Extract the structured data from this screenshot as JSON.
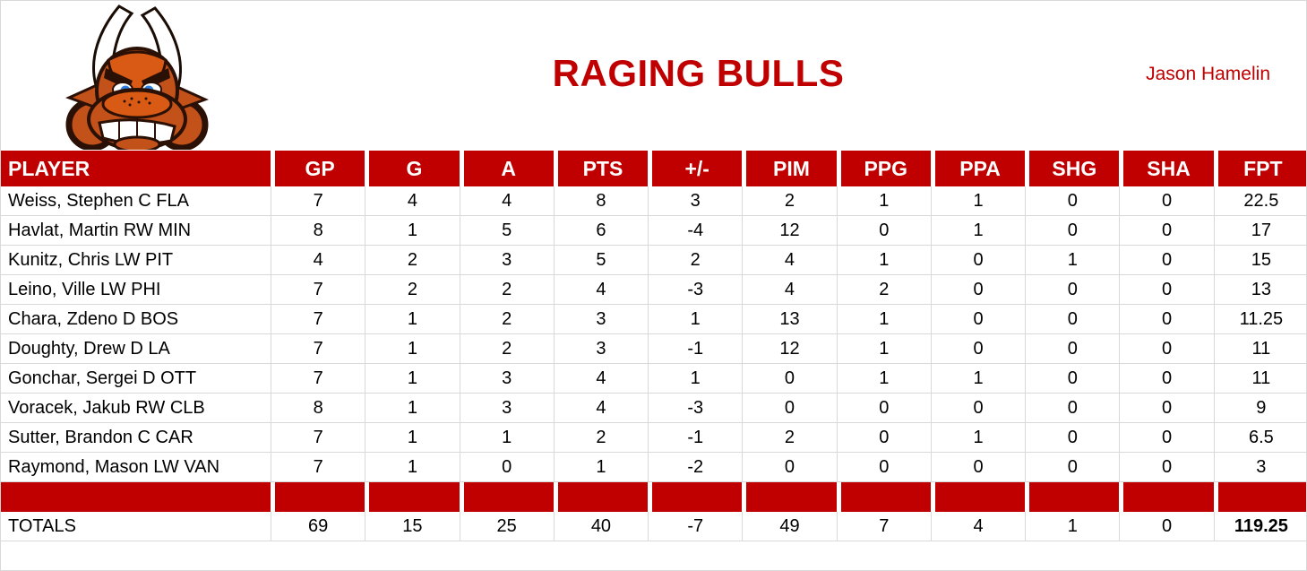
{
  "page": {
    "title": "RAGING BULLS",
    "owner": "Jason Hamelin",
    "accent_color": "#C00000"
  },
  "logo": {
    "icon": "raging-bull-logo"
  },
  "table": {
    "columns": [
      "PLAYER",
      "GP",
      "G",
      "A",
      "PTS",
      "+/-",
      "PIM",
      "PPG",
      "PPA",
      "SHG",
      "SHA",
      "FPT"
    ],
    "rows": [
      {
        "player": "Weiss, Stephen C FLA",
        "stats": [
          "7",
          "4",
          "4",
          "8",
          "3",
          "2",
          "1",
          "1",
          "0",
          "0",
          "22.5"
        ]
      },
      {
        "player": "Havlat, Martin RW MIN",
        "stats": [
          "8",
          "1",
          "5",
          "6",
          "-4",
          "12",
          "0",
          "1",
          "0",
          "0",
          "17"
        ]
      },
      {
        "player": "Kunitz, Chris LW PIT",
        "stats": [
          "4",
          "2",
          "3",
          "5",
          "2",
          "4",
          "1",
          "0",
          "1",
          "0",
          "15"
        ]
      },
      {
        "player": "Leino, Ville LW PHI",
        "stats": [
          "7",
          "2",
          "2",
          "4",
          "-3",
          "4",
          "2",
          "0",
          "0",
          "0",
          "13"
        ]
      },
      {
        "player": "Chara, Zdeno D BOS",
        "stats": [
          "7",
          "1",
          "2",
          "3",
          "1",
          "13",
          "1",
          "0",
          "0",
          "0",
          "11.25"
        ]
      },
      {
        "player": "Doughty, Drew D LA",
        "stats": [
          "7",
          "1",
          "2",
          "3",
          "-1",
          "12",
          "1",
          "0",
          "0",
          "0",
          "11"
        ]
      },
      {
        "player": "Gonchar, Sergei D OTT",
        "stats": [
          "7",
          "1",
          "3",
          "4",
          "1",
          "0",
          "1",
          "1",
          "0",
          "0",
          "11"
        ]
      },
      {
        "player": "Voracek, Jakub RW CLB",
        "stats": [
          "8",
          "1",
          "3",
          "4",
          "-3",
          "0",
          "0",
          "0",
          "0",
          "0",
          "9"
        ]
      },
      {
        "player": "Sutter, Brandon C CAR",
        "stats": [
          "7",
          "1",
          "1",
          "2",
          "-1",
          "2",
          "0",
          "1",
          "0",
          "0",
          "6.5"
        ]
      },
      {
        "player": "Raymond, Mason LW VAN",
        "stats": [
          "7",
          "1",
          "0",
          "1",
          "-2",
          "0",
          "0",
          "0",
          "0",
          "0",
          "3"
        ]
      }
    ],
    "totals_label": "TOTALS",
    "totals": [
      "69",
      "15",
      "25",
      "40",
      "-7",
      "49",
      "7",
      "4",
      "1",
      "0",
      "119.25"
    ]
  }
}
